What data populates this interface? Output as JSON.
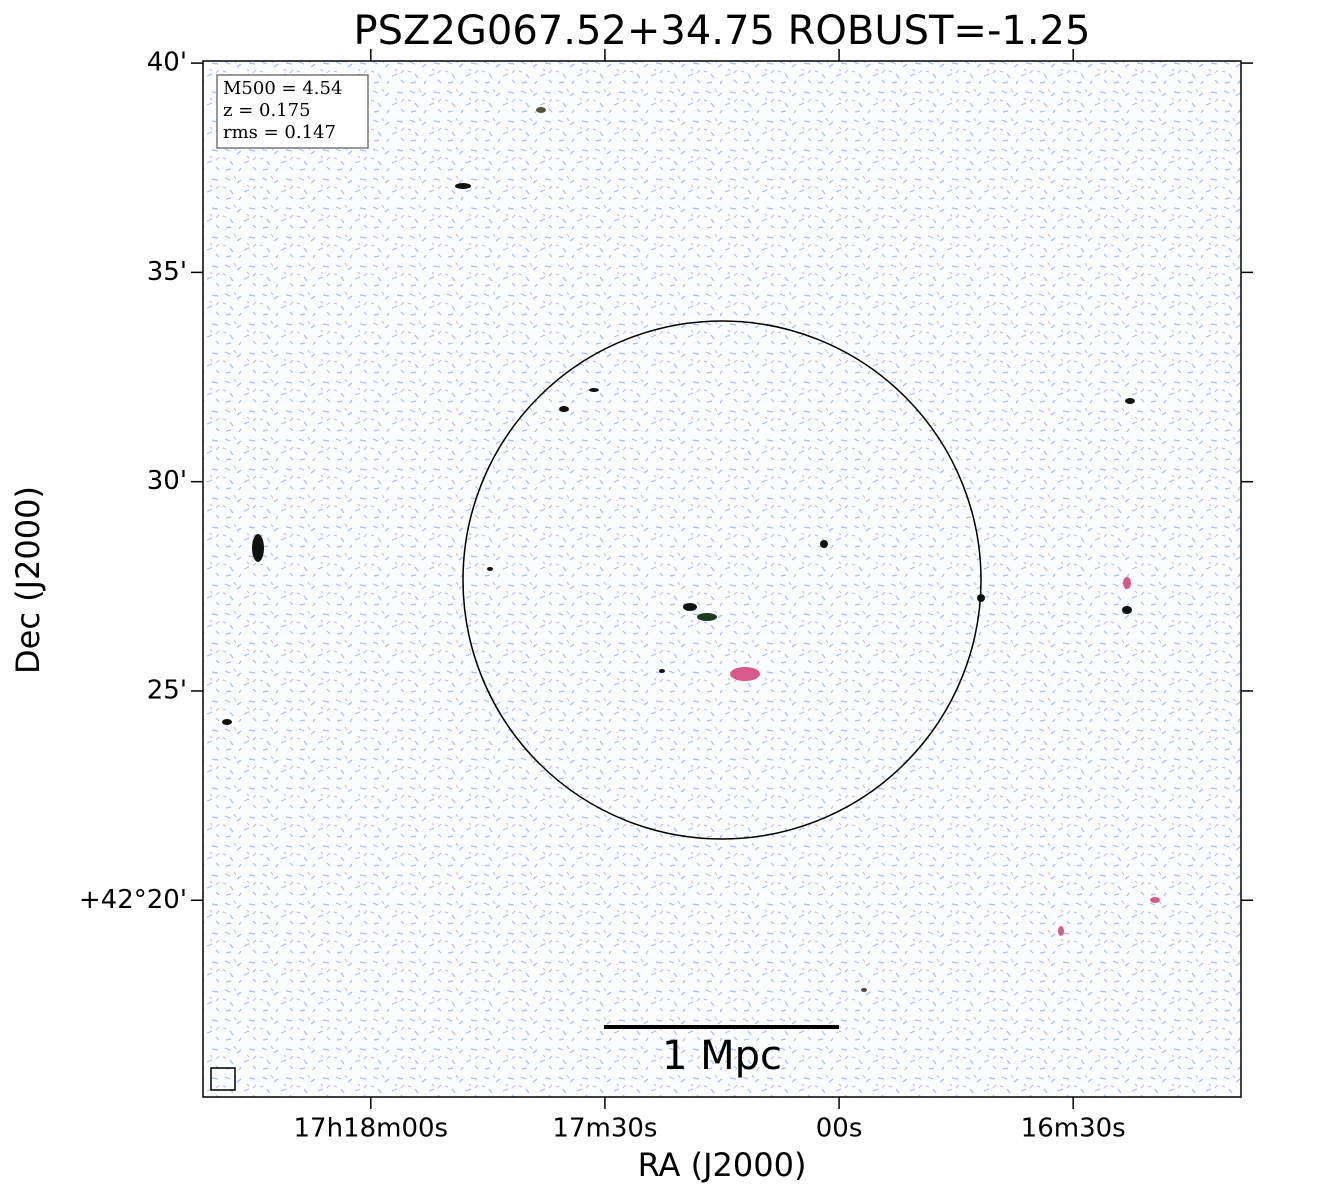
{
  "chart_data": {
    "type": "image",
    "title": "PSZ2G067.52+34.75 ROBUST=-1.25",
    "x_label": "RA (J2000)",
    "y_label": "Dec (J2000)",
    "xlim": [
      1101.5,
      968.5
    ],
    "ylim": [
      15.3,
      40.05
    ],
    "xticks": [
      {
        "value": 1080,
        "label": "17h18m00s"
      },
      {
        "value": 1050,
        "label": "17m30s"
      },
      {
        "value": 1020,
        "label": "00s"
      },
      {
        "value": 990,
        "label": "16m30s"
      }
    ],
    "yticks": [
      {
        "value": 40,
        "label": "40'"
      },
      {
        "value": 35,
        "label": "35'"
      },
      {
        "value": 30,
        "label": "30'"
      },
      {
        "value": 25,
        "label": "25'"
      },
      {
        "value": 20,
        "label": "+42°20'"
      }
    ],
    "info_box": [
      "M500 = 4.54",
      "z = 0.175",
      "rms = 0.147"
    ],
    "scale_bar": "1 Mpc"
  }
}
